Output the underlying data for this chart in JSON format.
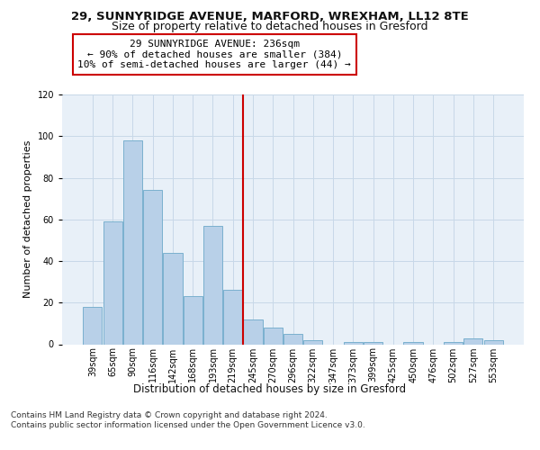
{
  "title1": "29, SUNNYRIDGE AVENUE, MARFORD, WREXHAM, LL12 8TE",
  "title2": "Size of property relative to detached houses in Gresford",
  "xlabel": "Distribution of detached houses by size in Gresford",
  "ylabel": "Number of detached properties",
  "categories": [
    "39sqm",
    "65sqm",
    "90sqm",
    "116sqm",
    "142sqm",
    "168sqm",
    "193sqm",
    "219sqm",
    "245sqm",
    "270sqm",
    "296sqm",
    "322sqm",
    "347sqm",
    "373sqm",
    "399sqm",
    "425sqm",
    "450sqm",
    "476sqm",
    "502sqm",
    "527sqm",
    "553sqm"
  ],
  "values": [
    18,
    59,
    98,
    74,
    44,
    23,
    57,
    26,
    12,
    8,
    5,
    2,
    0,
    1,
    1,
    0,
    1,
    0,
    1,
    3,
    2
  ],
  "bar_color": "#b8d0e8",
  "bar_edge_color": "#7ab0ce",
  "vline_x_index": 7.5,
  "vline_color": "#cc0000",
  "annotation_text": "29 SUNNYRIDGE AVENUE: 236sqm\n← 90% of detached houses are smaller (384)\n10% of semi-detached houses are larger (44) →",
  "annotation_box_color": "#ffffff",
  "annotation_box_edge": "#cc0000",
  "ylim": [
    0,
    120
  ],
  "yticks": [
    0,
    20,
    40,
    60,
    80,
    100,
    120
  ],
  "grid_color": "#c8d8e8",
  "background_color": "#e8f0f8",
  "footer": "Contains HM Land Registry data © Crown copyright and database right 2024.\nContains public sector information licensed under the Open Government Licence v3.0.",
  "title1_fontsize": 9.5,
  "title2_fontsize": 9,
  "xlabel_fontsize": 8.5,
  "ylabel_fontsize": 8,
  "tick_fontsize": 7,
  "annotation_fontsize": 8,
  "footer_fontsize": 6.5
}
